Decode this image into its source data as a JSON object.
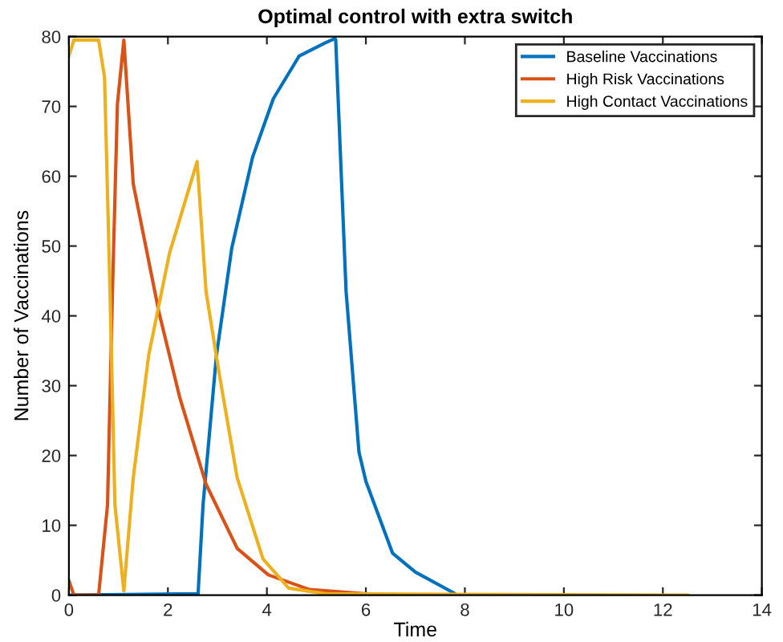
{
  "chart_data": {
    "type": "line",
    "title": "Optimal control with extra switch",
    "xlabel": "Time",
    "ylabel": "Number of Vaccinations",
    "xlim": [
      0,
      14
    ],
    "ylim": [
      0,
      80
    ],
    "xticks": [
      0,
      2,
      4,
      6,
      8,
      10,
      12,
      14
    ],
    "yticks": [
      0,
      10,
      20,
      30,
      40,
      50,
      60,
      70,
      80
    ],
    "grid": false,
    "legend": "top right",
    "marker": "none",
    "line_style": "solid",
    "series": [
      {
        "name": "Baseline Vaccinations",
        "color": "#0072bd",
        "x": [
          0,
          2.61,
          2.71,
          2.98,
          3.29,
          3.71,
          4.13,
          4.65,
          5.18,
          5.37,
          5.39,
          5.6,
          5.86,
          6,
          6.54,
          7,
          7.78
        ],
        "values": [
          0,
          0.2,
          12.9,
          34.3,
          49.7,
          62.7,
          71.1,
          77.2,
          79.1,
          79.7,
          79.6,
          43.5,
          20.5,
          16.3,
          6,
          3.3,
          0.3
        ]
      },
      {
        "name": "High Risk Vaccinations",
        "color": "#d95319",
        "x": [
          0,
          0.1,
          0.6,
          0.78,
          0.88,
          0.98,
          1.11,
          1.3,
          1.82,
          2.24,
          2.77,
          3.4,
          4.03,
          4.86,
          6
        ],
        "values": [
          2.1,
          0,
          0,
          12.9,
          43.5,
          70.3,
          79.5,
          58.9,
          40.5,
          28.3,
          15.9,
          6.7,
          2.9,
          0.8,
          0.2
        ]
      },
      {
        "name": "High Contact Vaccinations",
        "color": "#edb120",
        "x": [
          0,
          0.1,
          0.6,
          0.72,
          0.83,
          0.93,
          1.11,
          1.3,
          1.61,
          2.03,
          2.59,
          2.77,
          3.03,
          3.4,
          3.92,
          4.44,
          5.18,
          12.5
        ],
        "values": [
          77.2,
          79.5,
          79.5,
          74.2,
          43.5,
          12.9,
          0.6,
          16.8,
          34.3,
          48.9,
          62.1,
          43.5,
          32,
          16.8,
          5.2,
          1,
          0.2,
          0
        ]
      }
    ]
  }
}
